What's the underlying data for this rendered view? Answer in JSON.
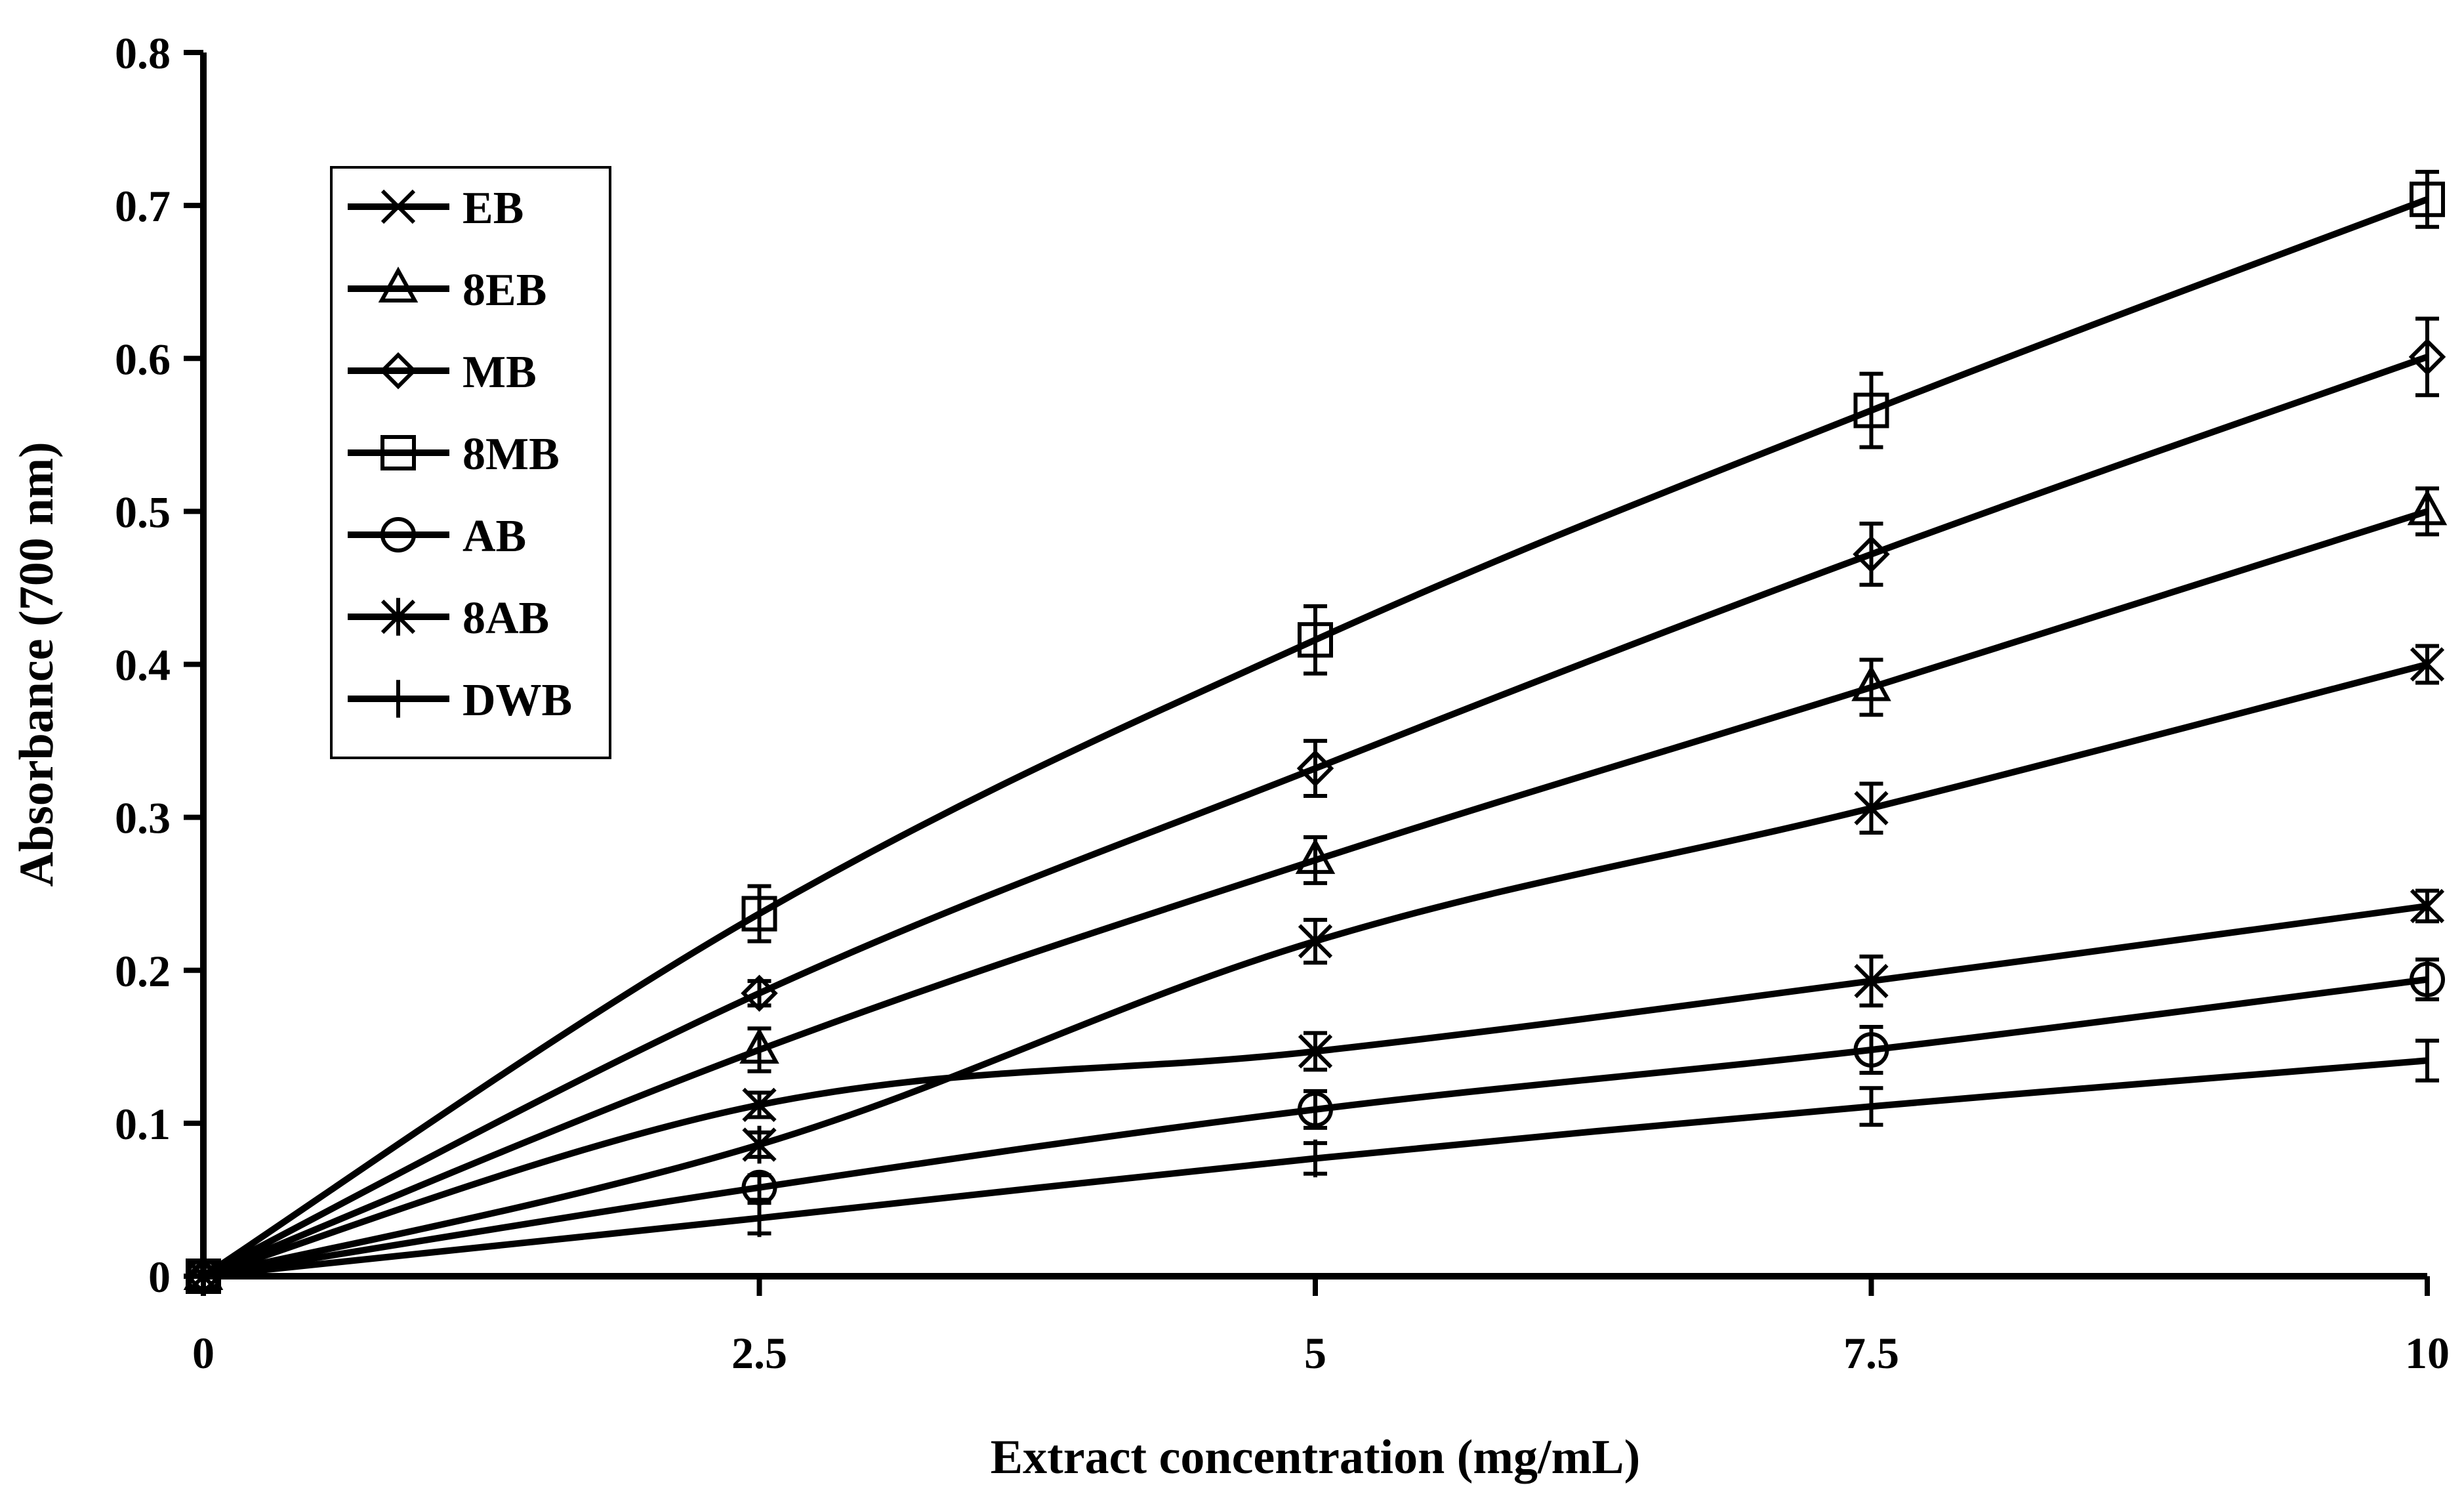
{
  "chart_data": {
    "type": "line",
    "title": "",
    "xlabel": "Extract concentration (mg/mL)",
    "ylabel": "Absorbance (700 nm)",
    "xlim": [
      0,
      10
    ],
    "ylim": [
      0,
      0.8
    ],
    "xticks": [
      "0",
      "2.5",
      "5",
      "7.5",
      "10"
    ],
    "xtick_values": [
      0,
      2.5,
      5,
      7.5,
      10
    ],
    "yticks": [
      "0",
      "0.1",
      "0.2",
      "0.3",
      "0.4",
      "0.5",
      "0.6",
      "0.7",
      "0.8"
    ],
    "ytick_values": [
      0,
      0.1,
      0.2,
      0.3,
      0.4,
      0.5,
      0.6,
      0.7,
      0.8
    ],
    "grid": false,
    "legend_position": "top-left",
    "x": [
      0,
      2.5,
      5,
      7.5,
      10
    ],
    "series": [
      {
        "name": "EB",
        "marker": "x",
        "values": [
          0,
          0.112,
          0.147,
          0.193,
          0.242
        ],
        "errors": [
          0,
          0.008,
          0.012,
          0.016,
          0.01
        ]
      },
      {
        "name": "8EB",
        "marker": "triangle",
        "values": [
          0,
          0.148,
          0.272,
          0.385,
          0.5
        ],
        "errors": [
          0,
          0.014,
          0.015,
          0.018,
          0.015
        ]
      },
      {
        "name": "MB",
        "marker": "diamond",
        "values": [
          0,
          0.185,
          0.332,
          0.472,
          0.601
        ],
        "errors": [
          0,
          0.008,
          0.018,
          0.02,
          0.025
        ]
      },
      {
        "name": "8MB",
        "marker": "square",
        "values": [
          0,
          0.237,
          0.416,
          0.566,
          0.704
        ],
        "errors": [
          0,
          0.018,
          0.022,
          0.024,
          0.018
        ]
      },
      {
        "name": "AB",
        "marker": "circle",
        "values": [
          0,
          0.058,
          0.109,
          0.148,
          0.194
        ],
        "errors": [
          0,
          0.008,
          0.012,
          0.015,
          0.013
        ]
      },
      {
        "name": "8AB",
        "marker": "asterisk",
        "values": [
          0,
          0.086,
          0.219,
          0.306,
          0.4
        ],
        "errors": [
          0,
          0.008,
          0.014,
          0.016,
          0.012
        ]
      },
      {
        "name": "DWB",
        "marker": "plus",
        "values": [
          0,
          0.038,
          0.077,
          0.111,
          0.141
        ],
        "errors": [
          0,
          0.01,
          0.01,
          0.012,
          0.013
        ]
      }
    ]
  }
}
